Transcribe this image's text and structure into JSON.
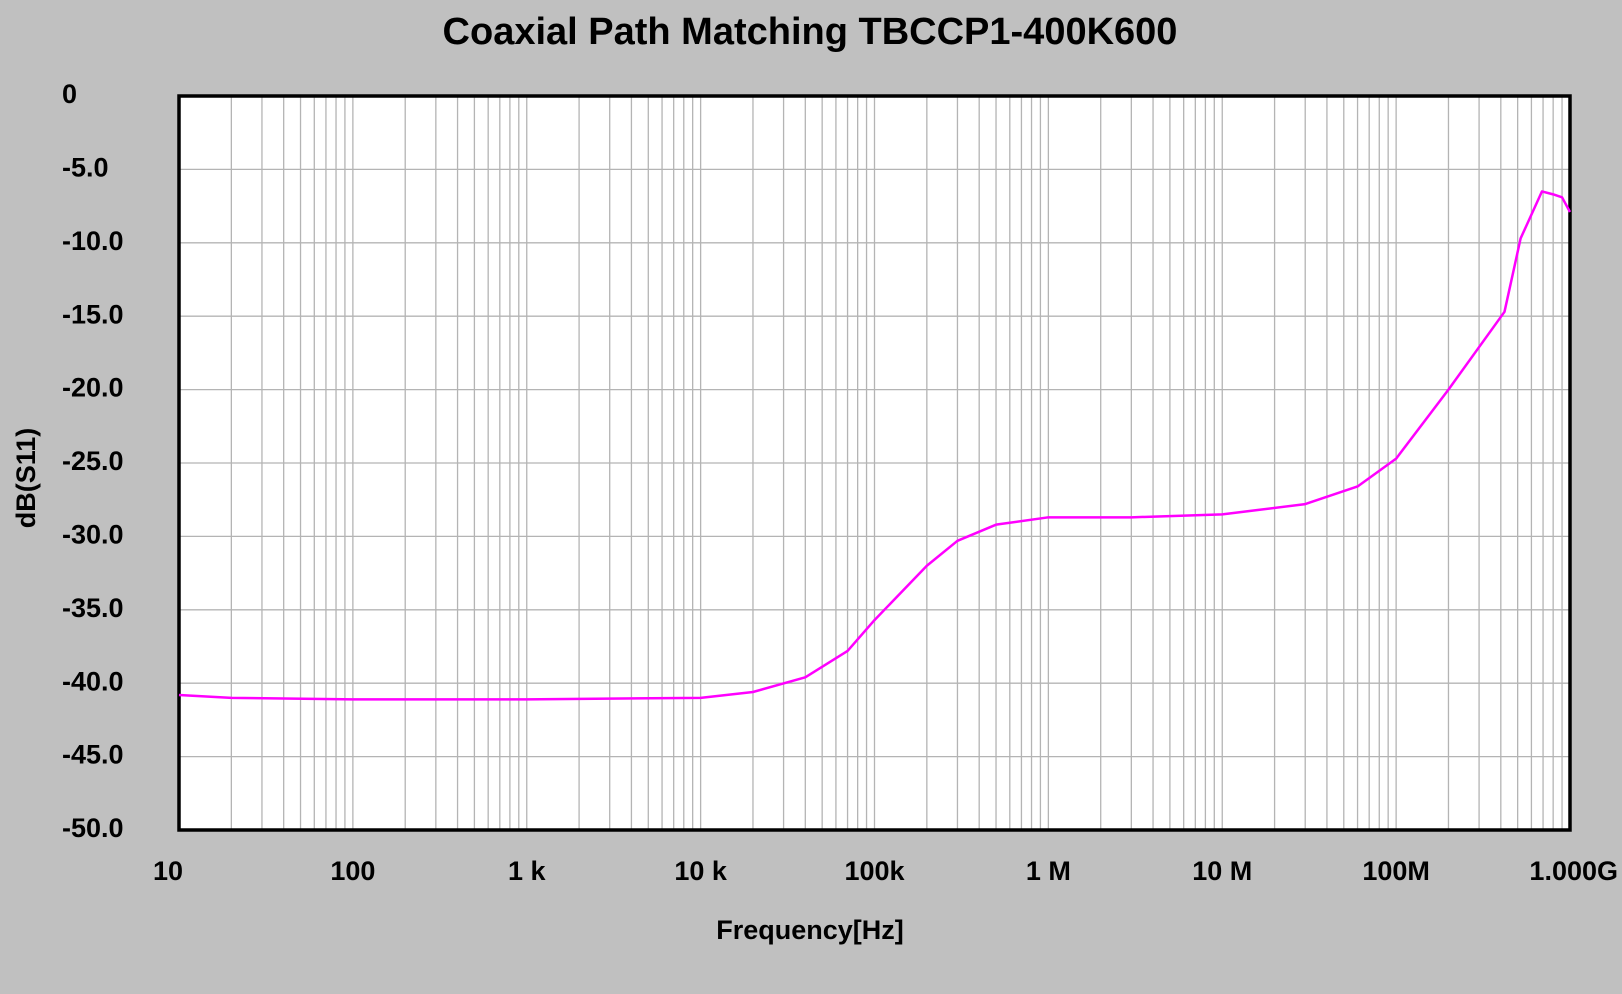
{
  "chart_data": {
    "type": "line",
    "title": "Coaxial Path Matching TBCCP1-400K600",
    "x_label": "Frequency[Hz]",
    "y_label": "dB(S11)",
    "x_log": true,
    "grid": true,
    "minor_grid": true,
    "xlim": [
      10,
      1000000000
    ],
    "ylim": [
      -50,
      0
    ],
    "xticks": [
      10,
      100,
      {
        "value": 1000,
        "label": "1  k"
      },
      {
        "value": 10000,
        "label": "10 k"
      },
      {
        "value": 100000,
        "label": "100k"
      },
      {
        "value": 1000000,
        "label": "1  M"
      },
      {
        "value": 10000000,
        "label": "10 M"
      },
      {
        "value": 100000000,
        "label": "100M"
      },
      {
        "value": 1000000000,
        "label": "1.000G"
      }
    ],
    "yticks": [
      0,
      {
        "value": -5,
        "label": "-5.0"
      },
      {
        "value": -10,
        "label": "-10.0"
      },
      {
        "value": -15,
        "label": "-15.0"
      },
      {
        "value": -20,
        "label": "-20.0"
      },
      {
        "value": -25,
        "label": "-25.0"
      },
      {
        "value": -30,
        "label": "-30.0"
      },
      {
        "value": -35,
        "label": "-35.0"
      },
      {
        "value": -40,
        "label": "-40.0"
      },
      {
        "value": -45,
        "label": "-45.0"
      },
      {
        "value": -50,
        "label": "-50.0"
      }
    ],
    "x": [
      10,
      20,
      100,
      1000,
      10000,
      20000,
      40000,
      70000,
      100000,
      200000,
      300000,
      500000,
      1000000,
      3000000,
      10000000,
      30000000,
      60000000,
      100000000,
      200000000,
      420000000,
      520000000,
      690000000,
      800000000,
      900000000,
      1000000000
    ],
    "series": [
      {
        "color": "#ff00ff",
        "values": [
          -40.8,
          -41.0,
          -41.1,
          -41.1,
          -41.0,
          -40.6,
          -39.6,
          -37.8,
          -35.7,
          -32.0,
          -30.3,
          -29.2,
          -28.7,
          -28.7,
          -28.5,
          -27.8,
          -26.6,
          -24.7,
          -20.0,
          -14.7,
          -9.7,
          -6.5,
          -6.7,
          -6.9,
          -7.9
        ]
      }
    ]
  }
}
